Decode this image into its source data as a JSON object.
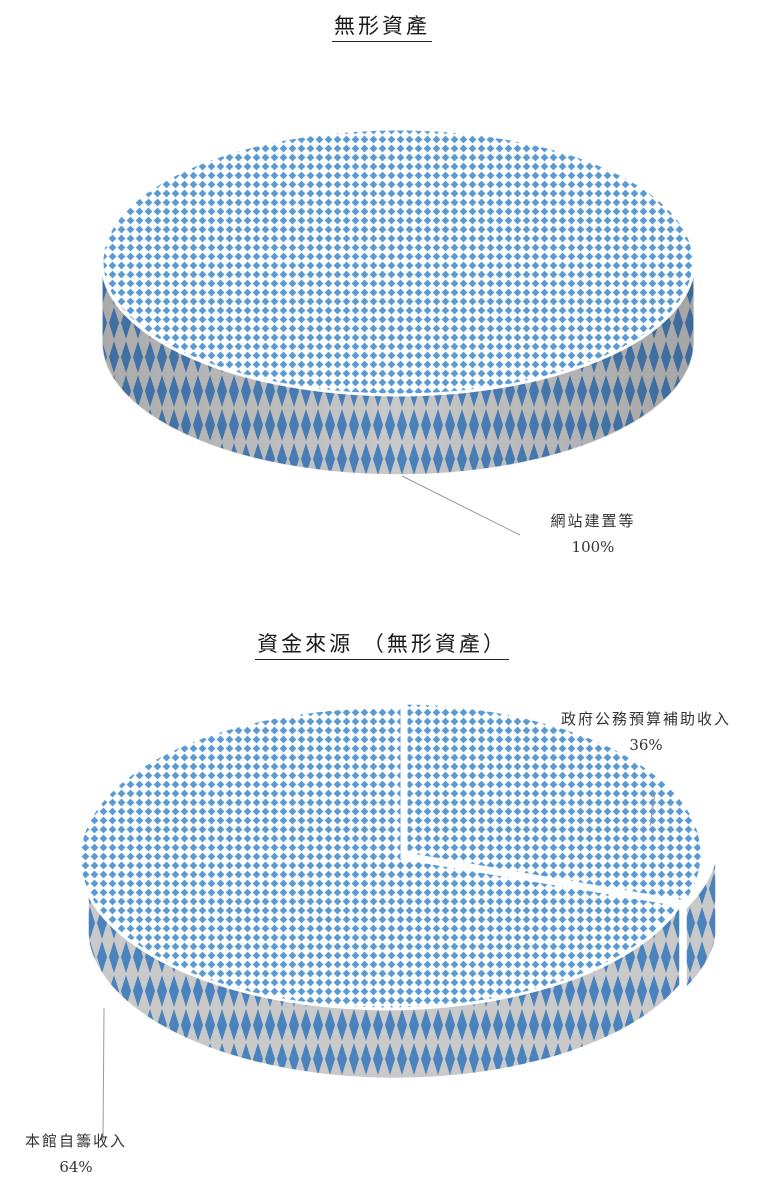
{
  "chart_data": [
    {
      "type": "pie",
      "style": "3d",
      "title": "無形資產",
      "slices": [
        {
          "label": "網站建置等",
          "value": 100,
          "value_label": "100%"
        }
      ],
      "colors": {
        "pattern_fg": "#5b9bd5",
        "pattern_bg": "#ffffff",
        "side_dark": "#4a7fb5",
        "side_light": "#c8c8c8"
      }
    },
    {
      "type": "pie",
      "style": "3d",
      "title": "資金來源 （無形資產）",
      "slices": [
        {
          "label": "政府公務預算補助收入",
          "value": 36,
          "value_label": "36%"
        },
        {
          "label": "本館自籌收入",
          "value": 64,
          "value_label": "64%"
        }
      ],
      "colors": {
        "pattern_fg": "#5b9bd5",
        "pattern_bg": "#ffffff",
        "side_dark": "#4a7fb5",
        "side_light": "#c8c8c8"
      }
    }
  ]
}
